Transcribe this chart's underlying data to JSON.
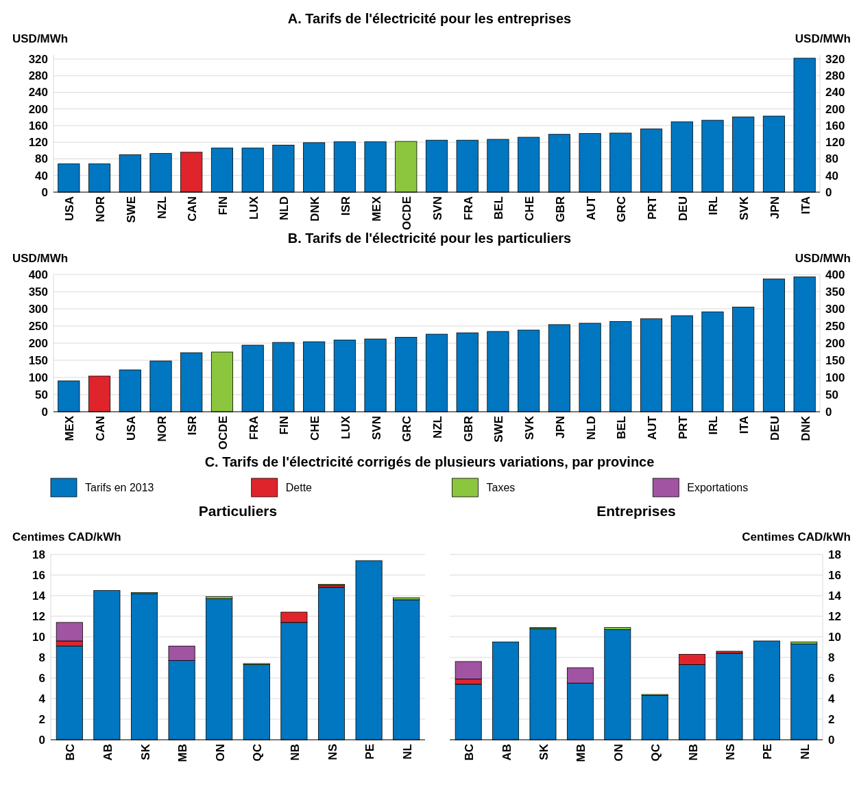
{
  "chart_data": [
    {
      "type": "bar",
      "title": "A. Tarifs de l'électricité pour les entreprises",
      "ylabel": "USD/MWh",
      "y2label": "USD/MWh",
      "categories": [
        "USA",
        "NOR",
        "SWE",
        "NZL",
        "CAN",
        "FIN",
        "LUX",
        "NLD",
        "DNK",
        "ISR",
        "MEX",
        "OCDE",
        "SVN",
        "FRA",
        "BEL",
        "CHE",
        "GBR",
        "AUT",
        "GRC",
        "PRT",
        "DEU",
        "IRL",
        "SVK",
        "JPN",
        "ITA"
      ],
      "values": [
        68,
        68,
        90,
        93,
        96,
        106,
        106,
        113,
        119,
        121,
        121,
        122,
        125,
        125,
        127,
        132,
        139,
        141,
        142,
        152,
        169,
        173,
        181,
        183,
        322
      ],
      "colors": [
        "#0077c0",
        "#0077c0",
        "#0077c0",
        "#0077c0",
        "#e0242b",
        "#0077c0",
        "#0077c0",
        "#0077c0",
        "#0077c0",
        "#0077c0",
        "#0077c0",
        "#8cc63f",
        "#0077c0",
        "#0077c0",
        "#0077c0",
        "#0077c0",
        "#0077c0",
        "#0077c0",
        "#0077c0",
        "#0077c0",
        "#0077c0",
        "#0077c0",
        "#0077c0",
        "#0077c0",
        "#0077c0"
      ],
      "ylim": [
        0,
        330
      ],
      "yticks": [
        0,
        40,
        80,
        120,
        160,
        200,
        240,
        280,
        320
      ],
      "y2lim": [
        0,
        330
      ],
      "y2ticks": [
        0,
        40,
        80,
        120,
        160,
        200,
        240,
        280,
        320
      ],
      "grid": "y"
    },
    {
      "type": "bar",
      "title": "B. Tarifs de l'électricité pour les particuliers",
      "ylabel": "USD/MWh",
      "y2label": "USD/MWh",
      "categories": [
        "MEX",
        "CAN",
        "USA",
        "NOR",
        "ISR",
        "OCDE",
        "FRA",
        "FIN",
        "CHE",
        "LUX",
        "SVN",
        "GRC",
        "NZL",
        "GBR",
        "SWE",
        "SVK",
        "JPN",
        "NLD",
        "BEL",
        "AUT",
        "PRT",
        "IRL",
        "ITA",
        "DEU",
        "DNK"
      ],
      "values": [
        90,
        104,
        122,
        148,
        172,
        174,
        194,
        202,
        204,
        209,
        212,
        217,
        226,
        230,
        234,
        238,
        254,
        258,
        263,
        271,
        280,
        291,
        305,
        387,
        393
      ],
      "colors": [
        "#0077c0",
        "#e0242b",
        "#0077c0",
        "#0077c0",
        "#0077c0",
        "#8cc63f",
        "#0077c0",
        "#0077c0",
        "#0077c0",
        "#0077c0",
        "#0077c0",
        "#0077c0",
        "#0077c0",
        "#0077c0",
        "#0077c0",
        "#0077c0",
        "#0077c0",
        "#0077c0",
        "#0077c0",
        "#0077c0",
        "#0077c0",
        "#0077c0",
        "#0077c0",
        "#0077c0",
        "#0077c0"
      ],
      "ylim": [
        0,
        400
      ],
      "yticks": [
        0,
        50,
        100,
        150,
        200,
        250,
        300,
        350,
        400
      ],
      "y2lim": [
        0,
        400
      ],
      "y2ticks": [
        0,
        50,
        100,
        150,
        200,
        250,
        300,
        350,
        400
      ],
      "grid": "y"
    },
    {
      "type": "bar",
      "title": "C. Tarifs de l'électricité corrigés de plusieurs variations, par province",
      "subtitle": "Particuliers",
      "ylabel": "Centimes CAD/kWh",
      "stacked": true,
      "legend": "top",
      "grid": "y",
      "categories": [
        "BC",
        "AB",
        "SK",
        "MB",
        "ON",
        "QC",
        "NB",
        "NS",
        "PE",
        "NL"
      ],
      "ylim": [
        0,
        18
      ],
      "yticks": [
        0,
        2,
        4,
        6,
        8,
        10,
        12,
        14,
        16,
        18
      ],
      "series": [
        {
          "name": "Tarifs en 2013",
          "color": "#0077c0",
          "values": [
            9.1,
            14.5,
            14.2,
            7.7,
            13.7,
            7.3,
            11.4,
            14.8,
            17.4,
            13.6
          ]
        },
        {
          "name": "Dette",
          "color": "#e0242b",
          "values": [
            0.5,
            null,
            null,
            null,
            null,
            null,
            1.0,
            0.2,
            null,
            null
          ]
        },
        {
          "name": "Taxes",
          "color": "#8cc63f",
          "values": [
            null,
            null,
            0.1,
            null,
            0.2,
            0.1,
            null,
            0.1,
            null,
            0.2
          ]
        },
        {
          "name": "Exportations",
          "color": "#a154a1",
          "values": [
            1.8,
            null,
            null,
            1.4,
            null,
            null,
            null,
            null,
            null,
            null
          ]
        }
      ]
    },
    {
      "type": "bar",
      "subtitle": "Entreprises",
      "y2label": "Centimes CAD/kWh",
      "stacked": true,
      "grid": "y",
      "categories": [
        "BC",
        "AB",
        "SK",
        "MB",
        "ON",
        "QC",
        "NB",
        "NS",
        "PE",
        "NL"
      ],
      "y2lim": [
        0,
        18
      ],
      "y2ticks": [
        0,
        2,
        4,
        6,
        8,
        10,
        12,
        14,
        16,
        18
      ],
      "series": [
        {
          "color": "#0077c0",
          "axis": "y2",
          "values": [
            5.4,
            9.5,
            10.8,
            5.5,
            10.7,
            4.3,
            7.3,
            8.4,
            9.6,
            9.3
          ]
        },
        {
          "color": "#e0242b",
          "axis": "y2",
          "values": [
            0.5,
            null,
            null,
            null,
            null,
            null,
            1.0,
            0.2,
            null,
            null
          ]
        },
        {
          "color": "#8cc63f",
          "axis": "y2",
          "values": [
            null,
            null,
            0.1,
            null,
            0.2,
            0.1,
            null,
            null,
            null,
            0.2
          ]
        },
        {
          "color": "#a154a1",
          "axis": "y2",
          "values": [
            1.7,
            null,
            null,
            1.5,
            null,
            null,
            null,
            null,
            null,
            null
          ]
        }
      ]
    }
  ]
}
